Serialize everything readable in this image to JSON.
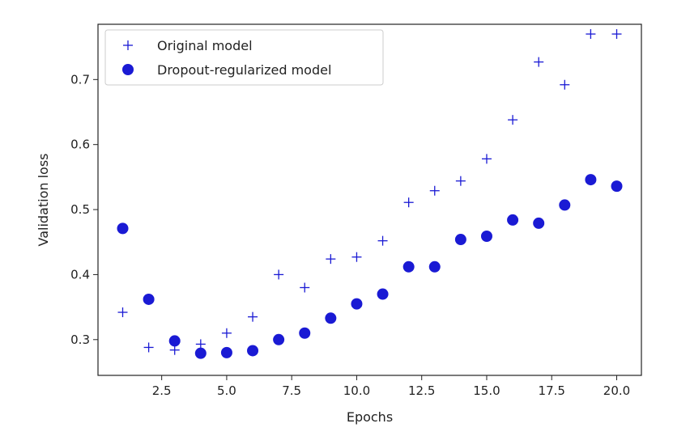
{
  "chart_data": {
    "type": "scatter",
    "title": "",
    "xlabel": "Epochs",
    "ylabel": "Validation loss",
    "xlim": [
      0.05,
      20.95
    ],
    "ylim": [
      0.245,
      0.785
    ],
    "xticks": [
      2.5,
      5.0,
      7.5,
      10.0,
      12.5,
      15.0,
      17.5,
      20.0
    ],
    "xtick_labels": [
      "2.5",
      "5.0",
      "7.5",
      "10.0",
      "12.5",
      "15.0",
      "17.5",
      "20.0"
    ],
    "yticks": [
      0.3,
      0.4,
      0.5,
      0.6,
      0.7
    ],
    "ytick_labels": [
      "0.3",
      "0.4",
      "0.5",
      "0.6",
      "0.7"
    ],
    "grid": false,
    "legend_position": "top-left",
    "series": [
      {
        "name": "Original model",
        "marker": "plus",
        "color": "#1a1ad4",
        "x": [
          1,
          2,
          3,
          4,
          5,
          6,
          7,
          8,
          9,
          10,
          11,
          12,
          13,
          14,
          15,
          16,
          17,
          18,
          19,
          20
        ],
        "y": [
          0.342,
          0.288,
          0.284,
          0.293,
          0.31,
          0.335,
          0.4,
          0.38,
          0.424,
          0.427,
          0.452,
          0.511,
          0.529,
          0.544,
          0.578,
          0.638,
          0.727,
          0.692,
          0.77,
          0.77
        ]
      },
      {
        "name": "Dropout-regularized model",
        "marker": "circle",
        "color": "#1a1ad4",
        "x": [
          1,
          2,
          3,
          4,
          5,
          6,
          7,
          8,
          9,
          10,
          11,
          12,
          13,
          14,
          15,
          16,
          17,
          18,
          19,
          20
        ],
        "y": [
          0.471,
          0.362,
          0.298,
          0.279,
          0.28,
          0.283,
          0.3,
          0.31,
          0.333,
          0.355,
          0.37,
          0.412,
          0.412,
          0.454,
          0.459,
          0.484,
          0.479,
          0.507,
          0.546,
          0.536
        ]
      }
    ]
  }
}
